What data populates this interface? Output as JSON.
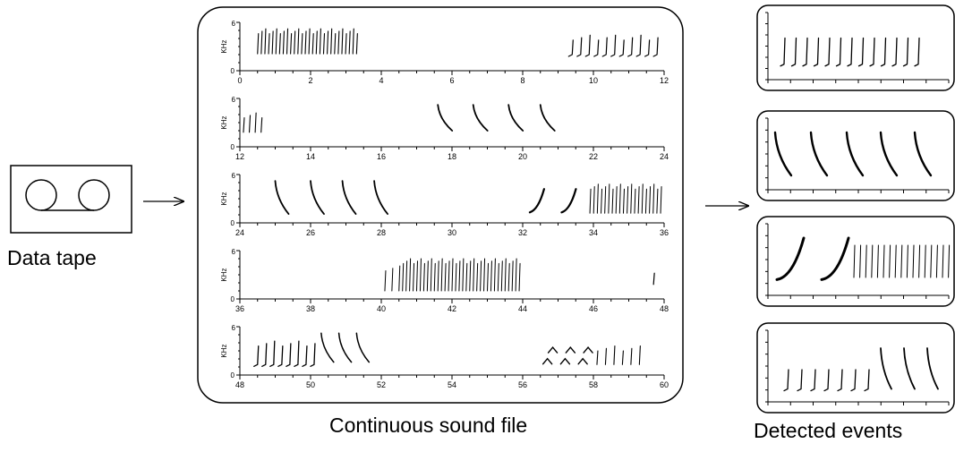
{
  "tape": {
    "caption": "Data tape"
  },
  "sound_file": {
    "caption": "Continuous sound file",
    "y_axis_label": "KHz",
    "y_ticks": [
      "0",
      "6"
    ],
    "panels": [
      {
        "x_ticks": [
          "0",
          "2",
          "4",
          "6",
          "8",
          "10",
          "12"
        ]
      },
      {
        "x_ticks": [
          "12",
          "14",
          "16",
          "18",
          "20",
          "22",
          "24"
        ]
      },
      {
        "x_ticks": [
          "24",
          "26",
          "28",
          "30",
          "32",
          "34",
          "36"
        ]
      },
      {
        "x_ticks": [
          "36",
          "38",
          "40",
          "42",
          "44",
          "46",
          "48"
        ]
      },
      {
        "x_ticks": [
          "48",
          "50",
          "52",
          "54",
          "56",
          "58",
          "60"
        ]
      }
    ]
  },
  "events": {
    "caption": "Detected events",
    "count": 4
  }
}
